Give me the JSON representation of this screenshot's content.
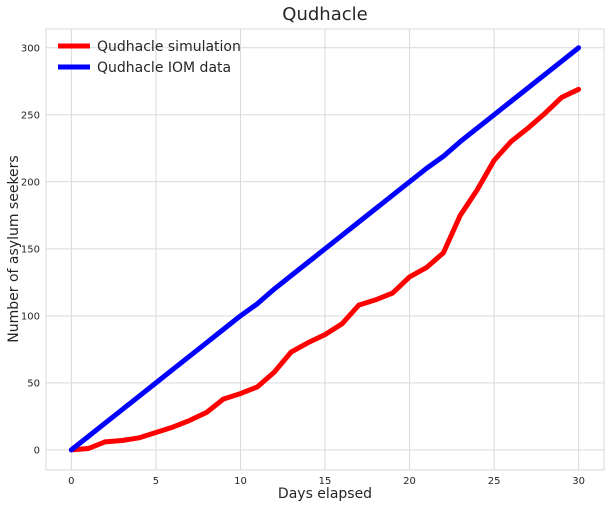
{
  "chart_data": {
    "type": "line",
    "title": "Qudhacle",
    "xlabel": "Days elapsed",
    "ylabel": "Number of asylum seekers",
    "xlim": [
      -1.5,
      31.5
    ],
    "ylim": [
      -15,
      314
    ],
    "xticks": [
      0,
      5,
      10,
      15,
      20,
      25,
      30
    ],
    "yticks": [
      0,
      50,
      100,
      150,
      200,
      250,
      300
    ],
    "grid": true,
    "legend_position": "top-left",
    "x": [
      0,
      1,
      2,
      3,
      4,
      5,
      6,
      7,
      8,
      9,
      10,
      11,
      12,
      13,
      14,
      15,
      16,
      17,
      18,
      19,
      20,
      21,
      22,
      23,
      24,
      25,
      26,
      27,
      28,
      29,
      30
    ],
    "series": [
      {
        "name": "Qudhacle simulation",
        "color": "#ff0000",
        "values": [
          0,
          1,
          6,
          7,
          9,
          13,
          17,
          22,
          28,
          38,
          42,
          47,
          58,
          73,
          80,
          86,
          94,
          108,
          112,
          117,
          129,
          136,
          147,
          175,
          194,
          216,
          230,
          240,
          251,
          263,
          269
        ]
      },
      {
        "name": "Qudhacle IOM data",
        "color": "#0000ff",
        "values": [
          0,
          10,
          20,
          30,
          40,
          50,
          60,
          70,
          80,
          90,
          100,
          109,
          120,
          130,
          140,
          150,
          160,
          170,
          180,
          190,
          200,
          210,
          219,
          230,
          240,
          250,
          260,
          270,
          280,
          290,
          300
        ]
      }
    ]
  }
}
